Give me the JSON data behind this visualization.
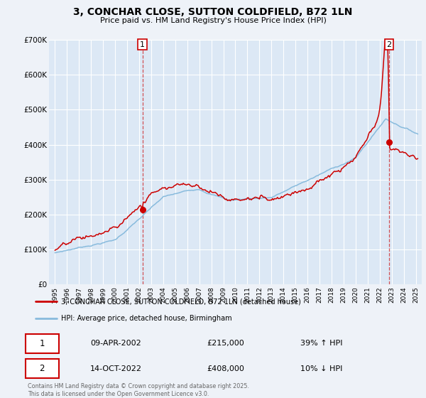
{
  "title": "3, CONCHAR CLOSE, SUTTON COLDFIELD, B72 1LN",
  "subtitle": "Price paid vs. HM Land Registry's House Price Index (HPI)",
  "background_color": "#eef2f8",
  "plot_bg_color": "#dce8f5",
  "red_line_color": "#cc0000",
  "blue_line_color": "#88bbdd",
  "marker1_date": 2002.27,
  "marker1_value": 215000,
  "marker2_date": 2022.79,
  "marker2_value": 408000,
  "vline1_date": 2002.27,
  "vline2_date": 2022.79,
  "ylim": [
    0,
    700000
  ],
  "xlim": [
    1994.5,
    2025.5
  ],
  "legend_label_red": "3, CONCHAR CLOSE, SUTTON COLDFIELD, B72 1LN (detached house)",
  "legend_label_blue": "HPI: Average price, detached house, Birmingham",
  "table_row1": [
    "1",
    "09-APR-2002",
    "£215,000",
    "39% ↑ HPI"
  ],
  "table_row2": [
    "2",
    "14-OCT-2022",
    "£408,000",
    "10% ↓ HPI"
  ],
  "footer": "Contains HM Land Registry data © Crown copyright and database right 2025.\nThis data is licensed under the Open Government Licence v3.0.",
  "yticks": [
    0,
    100000,
    200000,
    300000,
    400000,
    500000,
    600000,
    700000
  ],
  "ytick_labels": [
    "£0",
    "£100K",
    "£200K",
    "£300K",
    "£400K",
    "£500K",
    "£600K",
    "£700K"
  ]
}
